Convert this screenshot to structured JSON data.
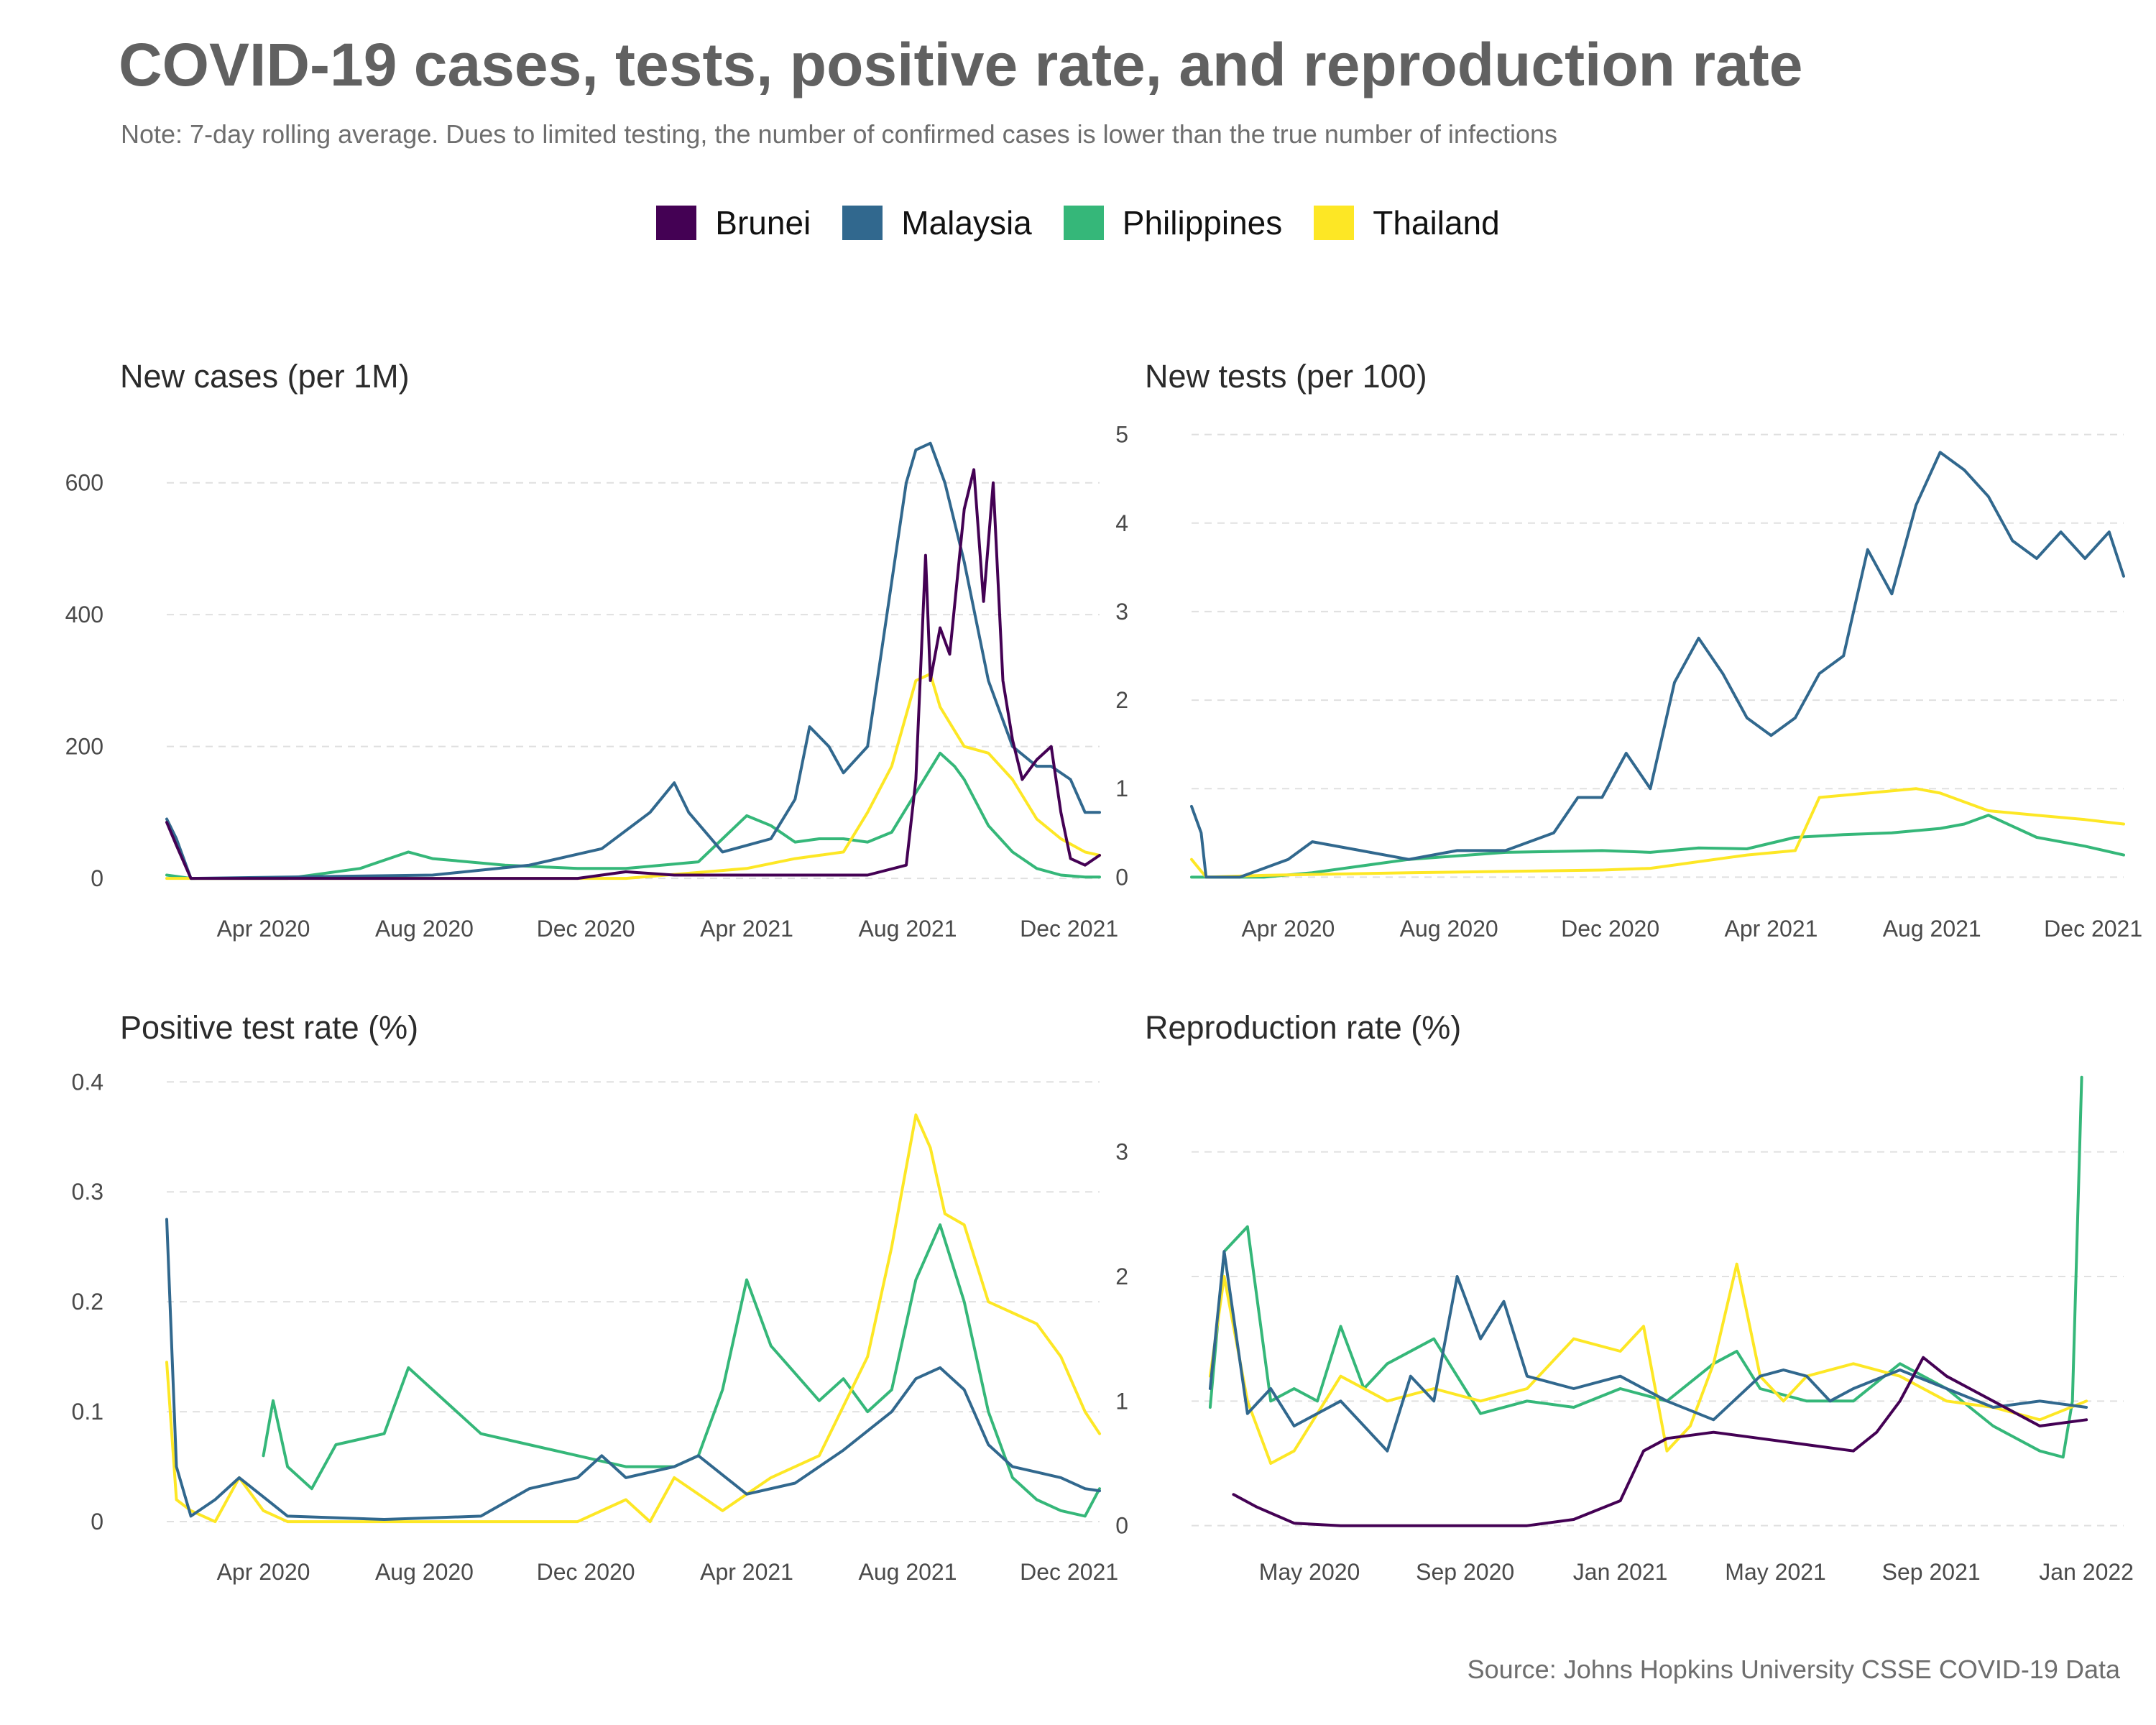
{
  "title": "COVID-19 cases, tests, positive rate, and reproduction rate",
  "subtitle": "Note: 7-day rolling average. Dues to limited testing, the number of confirmed cases is lower than the true number of infections",
  "source": "Source: Johns Hopkins University CSSE COVID-19 Data",
  "legend": [
    {
      "name": "Brunei",
      "color": "#440154"
    },
    {
      "name": "Malaysia",
      "color": "#31688e"
    },
    {
      "name": "Philippines",
      "color": "#35b779"
    },
    {
      "name": "Thailand",
      "color": "#fde725"
    }
  ],
  "chart_data": [
    {
      "type": "line",
      "title": "New cases (per 1M)",
      "ylim": [
        -25,
        700
      ],
      "yticks": [
        0,
        200,
        400,
        600
      ],
      "xlim": [
        2020.05,
        2021.98
      ],
      "xticks": [
        {
          "x": 2020.25,
          "label": "Apr 2020"
        },
        {
          "x": 2020.583,
          "label": "Aug 2020"
        },
        {
          "x": 2020.917,
          "label": "Dec 2020"
        },
        {
          "x": 2021.25,
          "label": "Apr 2021"
        },
        {
          "x": 2021.583,
          "label": "Aug 2021"
        },
        {
          "x": 2021.917,
          "label": "Dec 2021"
        }
      ],
      "grid": true,
      "series": [
        {
          "name": "Malaysia",
          "x": [
            2020.05,
            2020.07,
            2020.1,
            2020.3,
            2020.6,
            2020.8,
            2020.95,
            2021.05,
            2021.1,
            2021.13,
            2021.2,
            2021.3,
            2021.35,
            2021.38,
            2021.42,
            2021.45,
            2021.5,
            2021.55,
            2021.58,
            2021.6,
            2021.63,
            2021.66,
            2021.7,
            2021.75,
            2021.8,
            2021.85,
            2021.88,
            2021.92,
            2021.95,
            2021.98
          ],
          "y": [
            90,
            60,
            0,
            2,
            5,
            20,
            45,
            100,
            145,
            100,
            40,
            60,
            120,
            230,
            200,
            160,
            200,
            450,
            600,
            650,
            660,
            600,
            480,
            300,
            200,
            170,
            170,
            150,
            100,
            100
          ]
        },
        {
          "name": "Philippines",
          "x": [
            2020.05,
            2020.1,
            2020.3,
            2020.45,
            2020.55,
            2020.6,
            2020.75,
            2020.9,
            2021.0,
            2021.15,
            2021.2,
            2021.25,
            2021.3,
            2021.35,
            2021.4,
            2021.45,
            2021.5,
            2021.55,
            2021.6,
            2021.65,
            2021.68,
            2021.7,
            2021.75,
            2021.8,
            2021.85,
            2021.9,
            2021.95,
            2021.98
          ],
          "y": [
            5,
            0,
            0,
            15,
            40,
            30,
            20,
            15,
            15,
            25,
            60,
            95,
            80,
            55,
            60,
            60,
            55,
            70,
            130,
            190,
            170,
            150,
            80,
            40,
            15,
            5,
            2,
            2
          ]
        },
        {
          "name": "Thailand",
          "x": [
            2020.05,
            2020.1,
            2020.3,
            2020.9,
            2021.0,
            2021.25,
            2021.35,
            2021.45,
            2021.5,
            2021.55,
            2021.6,
            2021.63,
            2021.65,
            2021.7,
            2021.75,
            2021.8,
            2021.85,
            2021.9,
            2021.95,
            2021.98
          ],
          "y": [
            0,
            0,
            0,
            0,
            0,
            15,
            30,
            40,
            100,
            170,
            300,
            310,
            260,
            200,
            190,
            150,
            90,
            60,
            40,
            35
          ]
        },
        {
          "name": "Brunei",
          "x": [
            2020.05,
            2020.07,
            2020.1,
            2020.3,
            2020.5,
            2020.9,
            2021.0,
            2021.1,
            2021.5,
            2021.58,
            2021.6,
            2021.62,
            2021.63,
            2021.65,
            2021.67,
            2021.7,
            2021.72,
            2021.74,
            2021.76,
            2021.78,
            2021.8,
            2021.82,
            2021.85,
            2021.88,
            2021.9,
            2021.92,
            2021.95,
            2021.98
          ],
          "y": [
            85,
            50,
            0,
            0,
            0,
            0,
            10,
            5,
            5,
            20,
            150,
            490,
            300,
            380,
            340,
            560,
            620,
            420,
            600,
            300,
            210,
            150,
            180,
            200,
            100,
            30,
            20,
            35
          ]
        }
      ]
    },
    {
      "type": "line",
      "title": "New tests (per 100)",
      "ylim": [
        -0.2,
        5.2
      ],
      "yticks": [
        0,
        1,
        2,
        3,
        4,
        5
      ],
      "xlim": [
        2020.05,
        2021.98
      ],
      "xticks": [
        {
          "x": 2020.25,
          "label": "Apr 2020"
        },
        {
          "x": 2020.583,
          "label": "Aug 2020"
        },
        {
          "x": 2020.917,
          "label": "Dec 2020"
        },
        {
          "x": 2021.25,
          "label": "Apr 2021"
        },
        {
          "x": 2021.583,
          "label": "Aug 2021"
        },
        {
          "x": 2021.917,
          "label": "Dec 2021"
        }
      ],
      "grid": true,
      "series": [
        {
          "name": "Malaysia",
          "x": [
            2020.05,
            2020.07,
            2020.08,
            2020.15,
            2020.25,
            2020.3,
            2020.4,
            2020.5,
            2020.6,
            2020.7,
            2020.8,
            2020.85,
            2020.9,
            2020.95,
            2021.0,
            2021.05,
            2021.1,
            2021.15,
            2021.2,
            2021.25,
            2021.3,
            2021.35,
            2021.4,
            2021.45,
            2021.5,
            2021.55,
            2021.6,
            2021.65,
            2021.7,
            2021.75,
            2021.8,
            2021.85,
            2021.9,
            2021.95,
            2021.98
          ],
          "y": [
            0.8,
            0.5,
            0.0,
            0.0,
            0.2,
            0.4,
            0.3,
            0.2,
            0.3,
            0.3,
            0.5,
            0.9,
            0.9,
            1.4,
            1.0,
            2.2,
            2.7,
            2.3,
            1.8,
            1.6,
            1.8,
            2.3,
            2.5,
            3.7,
            3.2,
            4.2,
            4.8,
            4.6,
            4.3,
            3.8,
            3.6,
            3.9,
            3.6,
            3.9,
            3.4
          ]
        },
        {
          "name": "Philippines",
          "x": [
            2020.05,
            2020.2,
            2020.3,
            2020.5,
            2020.7,
            2020.9,
            2021.0,
            2021.1,
            2021.2,
            2021.3,
            2021.4,
            2021.5,
            2021.6,
            2021.65,
            2021.7,
            2021.8,
            2021.9,
            2021.98
          ],
          "y": [
            0,
            0,
            0.05,
            0.2,
            0.28,
            0.3,
            0.28,
            0.33,
            0.32,
            0.45,
            0.48,
            0.5,
            0.55,
            0.6,
            0.7,
            0.45,
            0.35,
            0.25
          ]
        },
        {
          "name": "Thailand",
          "x": [
            2020.05,
            2020.08,
            2020.2,
            2020.5,
            2020.9,
            2021.0,
            2021.2,
            2021.3,
            2021.35,
            2021.45,
            2021.55,
            2021.6,
            2021.7,
            2021.8,
            2021.9,
            2021.98
          ],
          "y": [
            0.2,
            0.0,
            0.02,
            0.05,
            0.08,
            0.1,
            0.25,
            0.3,
            0.9,
            0.95,
            1.0,
            0.95,
            0.75,
            0.7,
            0.65,
            0.6
          ]
        }
      ]
    },
    {
      "type": "line",
      "title": "Positive test rate (%)",
      "ylim": [
        -0.015,
        0.41
      ],
      "yticks": [
        0.0,
        0.1,
        0.2,
        0.3,
        0.4
      ],
      "xlim": [
        2020.05,
        2021.98
      ],
      "xticks": [
        {
          "x": 2020.25,
          "label": "Apr 2020"
        },
        {
          "x": 2020.583,
          "label": "Aug 2020"
        },
        {
          "x": 2020.917,
          "label": "Dec 2020"
        },
        {
          "x": 2021.25,
          "label": "Apr 2021"
        },
        {
          "x": 2021.583,
          "label": "Aug 2021"
        },
        {
          "x": 2021.917,
          "label": "Dec 2021"
        }
      ],
      "grid": true,
      "series": [
        {
          "name": "Malaysia",
          "x": [
            2020.05,
            2020.07,
            2020.1,
            2020.15,
            2020.2,
            2020.3,
            2020.5,
            2020.7,
            2020.8,
            2020.9,
            2020.95,
            2021.0,
            2021.1,
            2021.15,
            2021.25,
            2021.35,
            2021.45,
            2021.55,
            2021.6,
            2021.65,
            2021.7,
            2021.75,
            2021.8,
            2021.85,
            2021.9,
            2021.95,
            2021.98
          ],
          "y": [
            0.275,
            0.05,
            0.005,
            0.02,
            0.04,
            0.005,
            0.002,
            0.005,
            0.03,
            0.04,
            0.06,
            0.04,
            0.05,
            0.06,
            0.025,
            0.035,
            0.065,
            0.1,
            0.13,
            0.14,
            0.12,
            0.07,
            0.05,
            0.045,
            0.04,
            0.03,
            0.028
          ]
        },
        {
          "name": "Philippines",
          "x": [
            2020.25,
            2020.27,
            2020.3,
            2020.35,
            2020.4,
            2020.5,
            2020.55,
            2020.6,
            2020.7,
            2020.8,
            2020.9,
            2021.0,
            2021.1,
            2021.15,
            2021.2,
            2021.25,
            2021.3,
            2021.4,
            2021.45,
            2021.5,
            2021.55,
            2021.6,
            2021.65,
            2021.7,
            2021.75,
            2021.8,
            2021.85,
            2021.9,
            2021.95,
            2021.98
          ],
          "y": [
            0.06,
            0.11,
            0.05,
            0.03,
            0.07,
            0.08,
            0.14,
            0.12,
            0.08,
            0.07,
            0.06,
            0.05,
            0.05,
            0.06,
            0.12,
            0.22,
            0.16,
            0.11,
            0.13,
            0.1,
            0.12,
            0.22,
            0.27,
            0.2,
            0.1,
            0.04,
            0.02,
            0.01,
            0.005,
            0.03
          ]
        },
        {
          "name": "Thailand",
          "x": [
            2020.05,
            2020.07,
            2020.1,
            2020.15,
            2020.2,
            2020.25,
            2020.3,
            2020.5,
            2020.9,
            2021.0,
            2021.05,
            2021.1,
            2021.2,
            2021.3,
            2021.4,
            2021.5,
            2021.55,
            2021.6,
            2021.63,
            2021.66,
            2021.7,
            2021.75,
            2021.8,
            2021.85,
            2021.9,
            2021.95,
            2021.98
          ],
          "y": [
            0.145,
            0.02,
            0.01,
            0.0,
            0.04,
            0.01,
            0.0,
            0.0,
            0.0,
            0.02,
            0.0,
            0.04,
            0.01,
            0.04,
            0.06,
            0.15,
            0.25,
            0.37,
            0.34,
            0.28,
            0.27,
            0.2,
            0.19,
            0.18,
            0.15,
            0.1,
            0.08
          ]
        }
      ]
    },
    {
      "type": "line",
      "title": "Reproduction rate (%)",
      "ylim": [
        -0.1,
        3.65
      ],
      "yticks": [
        0,
        1,
        2,
        3
      ],
      "xlim": [
        2020.08,
        2022.08
      ],
      "xticks": [
        {
          "x": 2020.333,
          "label": "May 2020"
        },
        {
          "x": 2020.667,
          "label": "Sep 2020"
        },
        {
          "x": 2021.0,
          "label": "Jan 2021"
        },
        {
          "x": 2021.333,
          "label": "May 2021"
        },
        {
          "x": 2021.667,
          "label": "Sep 2021"
        },
        {
          "x": 2022.0,
          "label": "Jan 2022"
        }
      ],
      "grid": true,
      "series": [
        {
          "name": "Brunei",
          "x": [
            2020.17,
            2020.22,
            2020.3,
            2020.4,
            2020.6,
            2020.8,
            2020.9,
            2021.0,
            2021.05,
            2021.1,
            2021.2,
            2021.3,
            2021.4,
            2021.5,
            2021.55,
            2021.6,
            2021.65,
            2021.7,
            2021.75,
            2021.8,
            2021.9,
            2022.0
          ],
          "y": [
            0.25,
            0.15,
            0.02,
            0.0,
            0.0,
            0.0,
            0.05,
            0.2,
            0.6,
            0.7,
            0.75,
            0.7,
            0.65,
            0.6,
            0.75,
            1.0,
            1.35,
            1.2,
            1.1,
            1.0,
            0.8,
            0.85
          ]
        },
        {
          "name": "Malaysia",
          "x": [
            2020.12,
            2020.15,
            2020.2,
            2020.25,
            2020.3,
            2020.4,
            2020.5,
            2020.55,
            2020.6,
            2020.65,
            2020.7,
            2020.75,
            2020.8,
            2020.9,
            2021.0,
            2021.1,
            2021.2,
            2021.3,
            2021.35,
            2021.4,
            2021.45,
            2021.5,
            2021.6,
            2021.7,
            2021.8,
            2021.9,
            2022.0
          ],
          "y": [
            1.1,
            2.2,
            0.9,
            1.1,
            0.8,
            1.0,
            0.6,
            1.2,
            1.0,
            2.0,
            1.5,
            1.8,
            1.2,
            1.1,
            1.2,
            1.0,
            0.85,
            1.2,
            1.25,
            1.2,
            1.0,
            1.1,
            1.25,
            1.1,
            0.95,
            1.0,
            0.95
          ]
        },
        {
          "name": "Philippines",
          "x": [
            2020.12,
            2020.15,
            2020.2,
            2020.25,
            2020.3,
            2020.35,
            2020.4,
            2020.45,
            2020.5,
            2020.6,
            2020.7,
            2020.8,
            2020.9,
            2021.0,
            2021.1,
            2021.2,
            2021.25,
            2021.3,
            2021.4,
            2021.5,
            2021.6,
            2021.7,
            2021.8,
            2021.9,
            2021.95,
            2021.97,
            2021.99
          ],
          "y": [
            0.95,
            2.2,
            2.4,
            1.0,
            1.1,
            1.0,
            1.6,
            1.1,
            1.3,
            1.5,
            0.9,
            1.0,
            0.95,
            1.1,
            1.0,
            1.3,
            1.4,
            1.1,
            1.0,
            1.0,
            1.3,
            1.1,
            0.8,
            0.6,
            0.55,
            1.0,
            3.6
          ]
        },
        {
          "name": "Thailand",
          "x": [
            2020.12,
            2020.15,
            2020.2,
            2020.25,
            2020.3,
            2020.35,
            2020.4,
            2020.5,
            2020.6,
            2020.7,
            2020.8,
            2020.9,
            2021.0,
            2021.05,
            2021.1,
            2021.15,
            2021.2,
            2021.25,
            2021.3,
            2021.35,
            2021.4,
            2021.5,
            2021.6,
            2021.7,
            2021.8,
            2021.9,
            2022.0
          ],
          "y": [
            1.2,
            2.0,
            1.0,
            0.5,
            0.6,
            0.9,
            1.2,
            1.0,
            1.1,
            1.0,
            1.1,
            1.5,
            1.4,
            1.6,
            0.6,
            0.8,
            1.3,
            2.1,
            1.2,
            1.0,
            1.2,
            1.3,
            1.2,
            1.0,
            0.95,
            0.85,
            1.0
          ]
        }
      ]
    }
  ]
}
